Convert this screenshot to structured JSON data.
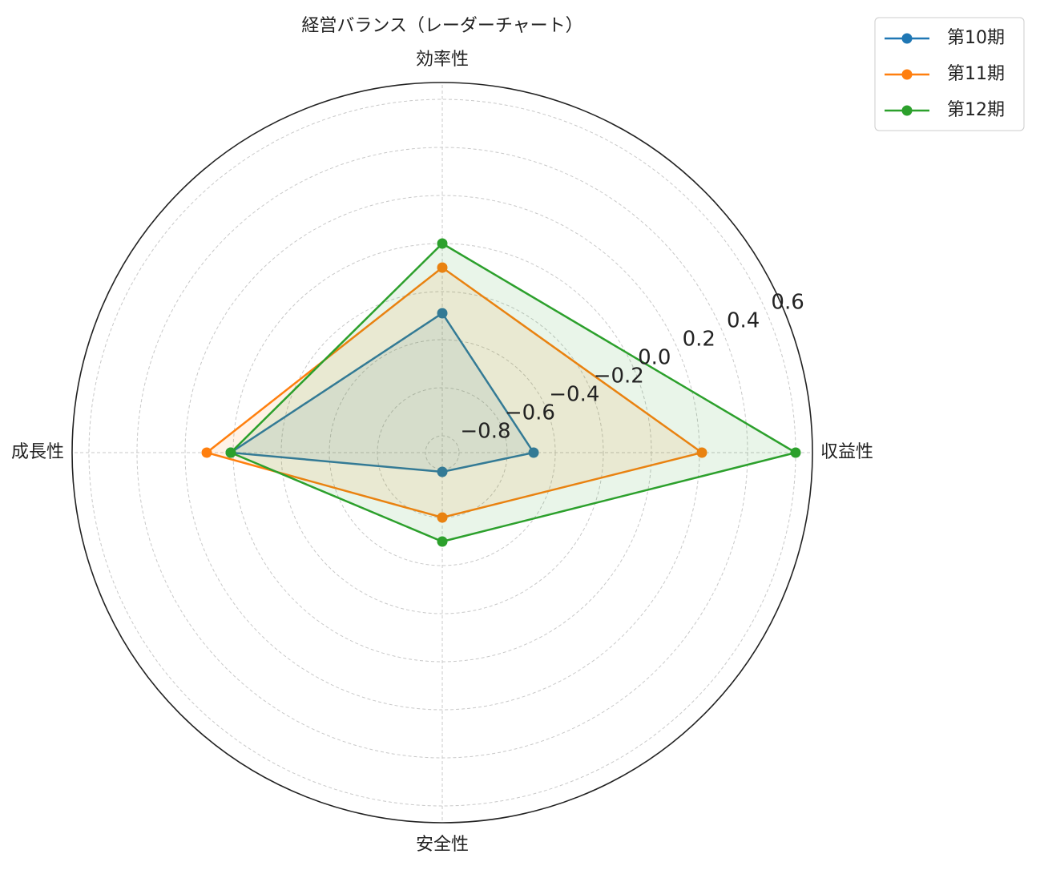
{
  "chart_data": {
    "type": "radar",
    "title": "経営バランス（レーダーチャート）",
    "categories": [
      "収益性",
      "効率性",
      "成長性",
      "安全性"
    ],
    "series": [
      {
        "name": "第10期",
        "color": "#1f77b4",
        "values": [
          -0.49,
          -0.29,
          0.01,
          -0.79
        ]
      },
      {
        "name": "第11期",
        "color": "#ff7f0e",
        "values": [
          0.21,
          -0.1,
          0.11,
          -0.6
        ]
      },
      {
        "name": "第12期",
        "color": "#2ca02c",
        "values": [
          0.6,
          0.0,
          0.01,
          -0.5
        ]
      }
    ],
    "ylim": [
      -0.87,
      0.67
    ],
    "yticks": [
      {
        "value": -0.8,
        "label": "−0.8"
      },
      {
        "value": -0.6,
        "label": "−0.6"
      },
      {
        "value": -0.4,
        "label": "−0.4"
      },
      {
        "value": -0.2,
        "label": "−0.2"
      },
      {
        "value": 0,
        "label": "0.0"
      },
      0.2,
      0.4,
      0.6
    ],
    "grid": true,
    "legend": "upper right"
  }
}
